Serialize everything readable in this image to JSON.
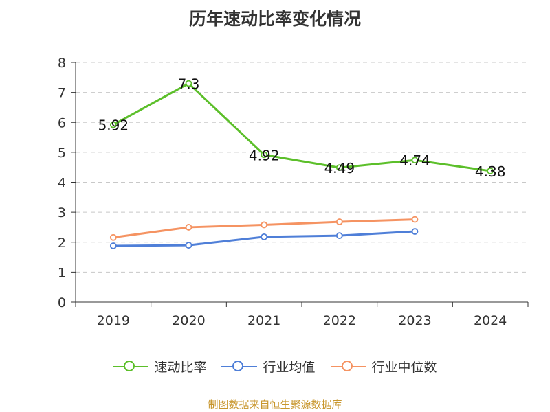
{
  "title": "历年速动比率变化情况",
  "source": "制图数据来自恒生聚源数据库",
  "chart_data": {
    "type": "line",
    "title": "历年速动比率变化情况",
    "categories": [
      "2019",
      "2020",
      "2021",
      "2022",
      "2023",
      "2024"
    ],
    "ylim": [
      0,
      8
    ],
    "yticks": [
      0,
      1,
      2,
      3,
      4,
      5,
      6,
      7,
      8
    ],
    "grid": true,
    "legend_position": "bottom",
    "series": [
      {
        "name": "速动比率",
        "color": "#5cbf2a",
        "values": [
          5.92,
          7.3,
          4.92,
          4.49,
          4.74,
          4.38
        ],
        "labels": [
          "5.92",
          "7.3",
          "4.92",
          "4.49",
          "4.74",
          "4.38"
        ]
      },
      {
        "name": "行业均值",
        "color": "#4f7fd8",
        "values": [
          1.88,
          1.9,
          2.18,
          2.22,
          2.36,
          null
        ]
      },
      {
        "name": "行业中位数",
        "color": "#f59362",
        "values": [
          2.16,
          2.5,
          2.58,
          2.68,
          2.76,
          null
        ]
      }
    ]
  }
}
